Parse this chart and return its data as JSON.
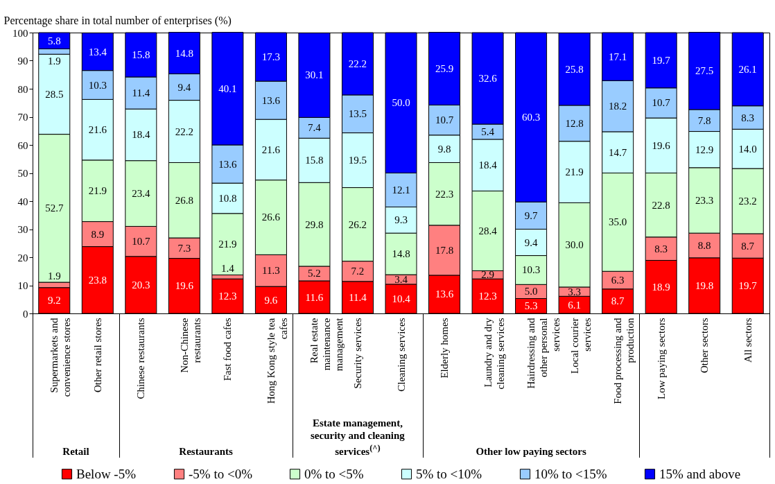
{
  "chart_data": {
    "type": "bar",
    "stacked": true,
    "legend": "bottom",
    "grid": false,
    "ylabel": "Percentage share in total number of enterprises (%)",
    "categories": [
      "Supermarkets and convenience stores",
      "Other retail stores",
      "Chinese restaurants",
      "Non-Chinese restaurants",
      "Fast food cafes",
      "Hong Kong style tea cafes",
      "Real estate maintenance management",
      "Security services",
      "Cleaning services",
      "Elderly homes",
      "Laundry and dry cleaning services",
      "Hairdressing and other personal services",
      "Local courier services",
      "Food processing and production",
      "Low paying sectors",
      "Other sectors",
      "All sectors"
    ],
    "ylim": [
      0,
      100
    ],
    "yticks": [
      0,
      10,
      20,
      30,
      40,
      50,
      60,
      70,
      80,
      90,
      100
    ],
    "annotations": [
      "Retail",
      "Restaurants",
      "Estate management, security and cleaning services$^{(^)}$",
      "Other low paying sectors"
    ],
    "series": [
      {
        "name": "Below -5%",
        "color": "#ff0000",
        "values": [
          9.2,
          23.8,
          20.3,
          19.6,
          12.3,
          9.6,
          11.6,
          11.4,
          10.4,
          13.6,
          12.3,
          5.3,
          6.1,
          8.7,
          18.9,
          19.8,
          19.7
        ],
        "value_labels": [
          "9.2",
          "23.8",
          "20.3",
          "19.6",
          "12.3",
          "9.6",
          "11.6",
          "11.4",
          "10.4",
          "13.6",
          "12.3",
          "5.3",
          "6.1",
          "8.7",
          "18.9",
          "19.8",
          "19.7"
        ]
      },
      {
        "name": "-5% to <0%",
        "color": "#ff8080",
        "values": [
          1.9,
          8.9,
          10.7,
          7.3,
          1.4,
          11.3,
          5.2,
          7.2,
          3.4,
          17.8,
          2.9,
          5.0,
          3.3,
          6.3,
          8.3,
          8.8,
          8.7
        ],
        "value_labels": [
          "1.9",
          "8.9",
          "10.7",
          "7.3",
          "1.4",
          "11.3",
          "5.2",
          "7.2",
          "3.4",
          "17.8",
          "2.9",
          "5.0",
          "3.3",
          "6.3",
          "8.3",
          "8.8",
          "8.7"
        ]
      },
      {
        "name": "0% to <5%",
        "color": "#ccffcc",
        "values": [
          52.7,
          21.9,
          23.4,
          26.8,
          21.9,
          26.6,
          29.8,
          26.2,
          14.8,
          22.3,
          28.4,
          10.3,
          30.0,
          35.0,
          22.8,
          23.3,
          23.2
        ],
        "value_labels": [
          "52.7",
          "21.9",
          "23.4",
          "26.8",
          "21.9",
          "26.6",
          "29.8",
          "26.2",
          "14.8",
          "22.3",
          "28.4",
          "10.3",
          "30.0",
          "35.0",
          "22.8",
          "23.3",
          "23.2"
        ]
      },
      {
        "name": "5% to <10%",
        "color": "#ccffff",
        "values": [
          28.5,
          21.6,
          18.4,
          22.2,
          10.8,
          21.6,
          15.8,
          19.5,
          9.3,
          9.8,
          18.4,
          9.4,
          21.9,
          14.7,
          19.6,
          12.9,
          14.0
        ],
        "value_labels": [
          "28.5",
          "21.6",
          "18.4",
          "22.2",
          "10.8",
          "21.6",
          "15.8",
          "19.5",
          "9.3",
          "9.8",
          "18.4",
          "9.4",
          "21.9",
          "14.7",
          "19.6",
          "12.9",
          "14.0"
        ]
      },
      {
        "name": "10% to <15%",
        "color": "#99ccff",
        "values": [
          1.9,
          10.3,
          11.4,
          9.4,
          13.6,
          13.6,
          7.4,
          13.5,
          12.1,
          10.7,
          5.4,
          9.7,
          12.8,
          18.2,
          10.7,
          7.8,
          8.3
        ],
        "value_labels": [
          "1.9",
          "10.3",
          "11.4",
          "9.4",
          "13.6",
          "13.6",
          "7.4",
          "13.5",
          "12.1",
          "10.7",
          "5.4",
          "9.7",
          "12.8",
          "18.2",
          "10.7",
          "7.8",
          "8.3"
        ]
      },
      {
        "name": "15% and above",
        "color": "#0000ff",
        "values": [
          5.8,
          13.4,
          15.8,
          14.8,
          40.1,
          17.3,
          30.1,
          22.2,
          50.0,
          25.9,
          32.6,
          60.3,
          25.8,
          17.1,
          19.7,
          27.5,
          26.1
        ],
        "value_labels": [
          "5.8",
          "13.4",
          "15.8",
          "14.8",
          "40.1",
          "17.3",
          "30.1",
          "22.2",
          "50.0",
          "25.9",
          "32.6",
          "60.3",
          "25.8",
          "17.1",
          "19.7",
          "27.5",
          "26.1"
        ]
      }
    ]
  }
}
